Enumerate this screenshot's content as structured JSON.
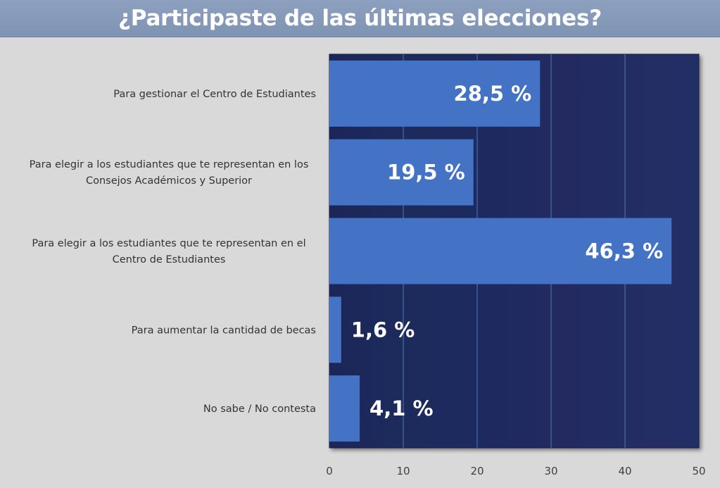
{
  "chart_data": {
    "type": "bar",
    "orientation": "horizontal",
    "title": "¿Participaste de las últimas elecciones?",
    "categories": [
      [
        "Para gestionar el Centro de Estudiantes"
      ],
      [
        "Para elegir a los estudiantes que te representan en los",
        "Consejos Académicos y Superior"
      ],
      [
        "Para elegir a los estudiantes que te representan en el",
        "Centro de Estudiantes"
      ],
      [
        "Para aumentar la cantidad de becas"
      ],
      [
        "No sabe / No contesta"
      ]
    ],
    "values": [
      28.5,
      19.5,
      46.3,
      1.6,
      4.1
    ],
    "data_labels": [
      "28,5 %",
      "19,5 %",
      "46,3 %",
      "1,6 %",
      "4,1 %"
    ],
    "xlim": [
      0,
      50
    ],
    "xticks": [
      "0",
      "10",
      "20",
      "30",
      "40",
      "50"
    ],
    "grid": "vertical",
    "colors": {
      "bar": "#4472c4",
      "plot_background": "#1f2a5e",
      "gridline": "#4a6aa8",
      "title_bar": "#8497b8"
    }
  }
}
